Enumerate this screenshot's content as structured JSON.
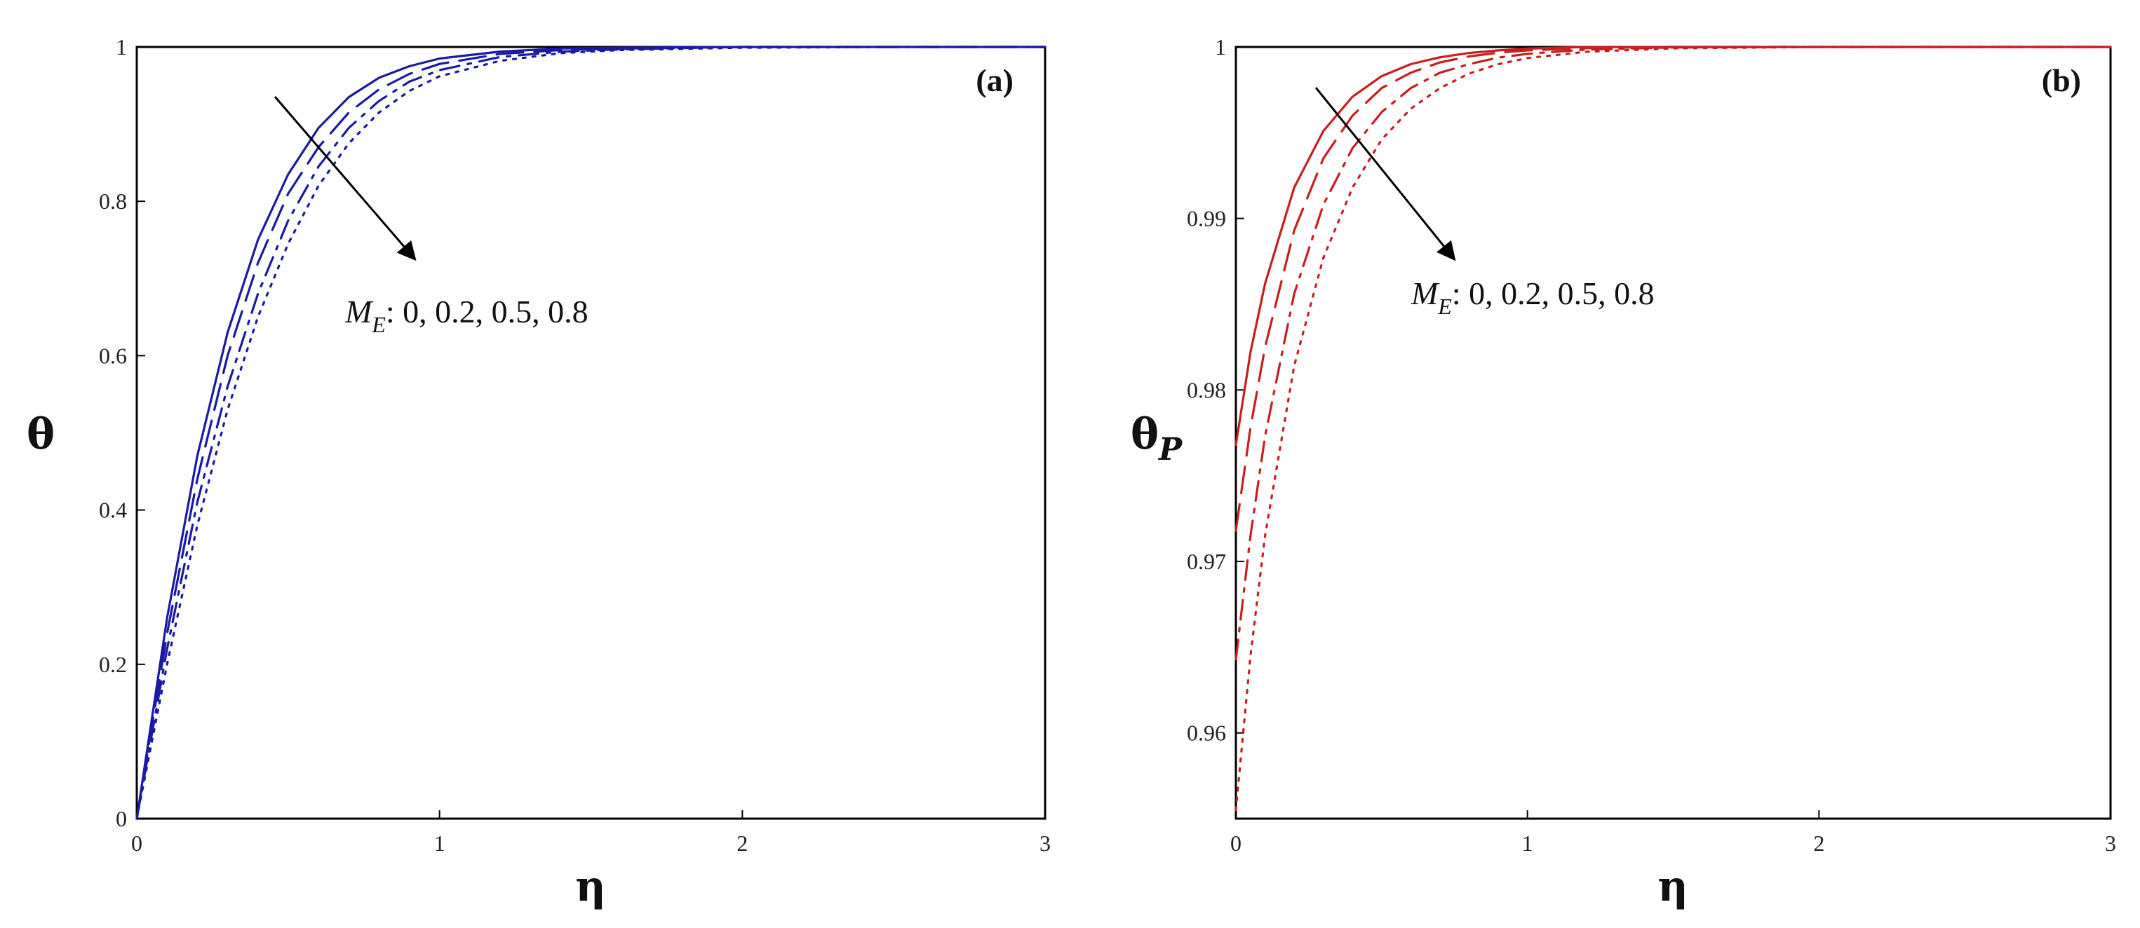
{
  "chart_data": [
    {
      "type": "line",
      "panel_label": "(a)",
      "xlabel": "η",
      "ylabel": "θ",
      "ylabel_sub": "",
      "xlim": [
        0,
        3
      ],
      "ylim": [
        0,
        1
      ],
      "xticks": [
        "0",
        "1",
        "2",
        "3"
      ],
      "yticks": [
        "0",
        "0.2",
        "0.4",
        "0.6",
        "0.8",
        "1"
      ],
      "color": "#1a1aa6",
      "annotation": {
        "variable": "M",
        "subscript": "E",
        "text": ": 0,  0.2, 0.5, 0.8"
      },
      "series": [
        {
          "param": 0,
          "style": "solid",
          "x": [
            0,
            0.1,
            0.2,
            0.3,
            0.4,
            0.5,
            0.6,
            0.7,
            0.8,
            0.9,
            1.0,
            1.2,
            1.4,
            1.6,
            2.0,
            2.5,
            3.0
          ],
          "y": [
            0,
            0.26,
            0.47,
            0.63,
            0.75,
            0.835,
            0.895,
            0.935,
            0.96,
            0.975,
            0.985,
            0.994,
            0.998,
            0.999,
            1,
            1,
            1
          ]
        },
        {
          "param": 0.2,
          "style": "dashed",
          "x": [
            0,
            0.1,
            0.2,
            0.3,
            0.4,
            0.5,
            0.6,
            0.7,
            0.8,
            0.9,
            1.0,
            1.2,
            1.4,
            1.6,
            2.0,
            2.5,
            3.0
          ],
          "y": [
            0,
            0.24,
            0.44,
            0.6,
            0.72,
            0.81,
            0.87,
            0.915,
            0.945,
            0.965,
            0.978,
            0.991,
            0.996,
            0.998,
            1,
            1,
            1
          ]
        },
        {
          "param": 0.5,
          "style": "dashdot",
          "x": [
            0,
            0.1,
            0.2,
            0.3,
            0.4,
            0.5,
            0.6,
            0.7,
            0.8,
            0.9,
            1.0,
            1.2,
            1.4,
            1.6,
            2.0,
            2.5,
            3.0
          ],
          "y": [
            0,
            0.22,
            0.41,
            0.56,
            0.68,
            0.775,
            0.845,
            0.895,
            0.93,
            0.955,
            0.97,
            0.987,
            0.994,
            0.997,
            1,
            1,
            1
          ]
        },
        {
          "param": 0.8,
          "style": "dotted",
          "x": [
            0,
            0.1,
            0.2,
            0.3,
            0.4,
            0.5,
            0.6,
            0.7,
            0.8,
            0.9,
            1.0,
            1.2,
            1.4,
            1.6,
            2.0,
            2.5,
            3.0
          ],
          "y": [
            0,
            0.2,
            0.38,
            0.53,
            0.65,
            0.745,
            0.82,
            0.875,
            0.915,
            0.943,
            0.962,
            0.982,
            0.992,
            0.996,
            0.999,
            1,
            1
          ]
        }
      ]
    },
    {
      "type": "line",
      "panel_label": "(b)",
      "xlabel": "η",
      "ylabel": "θ",
      "ylabel_sub": "P",
      "xlim": [
        0,
        3
      ],
      "ylim": [
        0.955,
        1
      ],
      "xticks": [
        "0",
        "1",
        "2",
        "3"
      ],
      "yticks": [
        "0.96",
        "0.97",
        "0.98",
        "0.99",
        "1"
      ],
      "color": "#c81e1e",
      "annotation": {
        "variable": "M",
        "subscript": "E",
        "text": ": 0,  0.2, 0.5, 0.8"
      },
      "series": [
        {
          "param": 0,
          "style": "solid",
          "x": [
            0,
            0.05,
            0.1,
            0.2,
            0.3,
            0.4,
            0.5,
            0.6,
            0.7,
            0.8,
            0.9,
            1.0,
            1.2,
            1.5,
            2.0,
            2.5,
            3.0
          ],
          "y": [
            0.9768,
            0.9822,
            0.9862,
            0.9918,
            0.9951,
            0.9971,
            0.9983,
            0.999,
            0.9994,
            0.99965,
            0.9998,
            0.9999,
            1,
            1,
            1,
            1,
            1
          ]
        },
        {
          "param": 0.2,
          "style": "dashed",
          "x": [
            0,
            0.05,
            0.1,
            0.2,
            0.3,
            0.4,
            0.5,
            0.6,
            0.7,
            0.8,
            0.9,
            1.0,
            1.2,
            1.5,
            2.0,
            2.5,
            3.0
          ],
          "y": [
            0.9718,
            0.9778,
            0.9825,
            0.9893,
            0.9935,
            0.996,
            0.9976,
            0.9985,
            0.9991,
            0.99945,
            0.99967,
            0.9998,
            0.99993,
            1,
            1,
            1,
            1
          ]
        },
        {
          "param": 0.5,
          "style": "dashdot",
          "x": [
            0,
            0.05,
            0.1,
            0.2,
            0.3,
            0.4,
            0.5,
            0.6,
            0.7,
            0.8,
            0.9,
            1.0,
            1.2,
            1.5,
            2.0,
            2.5,
            3.0
          ],
          "y": [
            0.9643,
            0.9715,
            0.9773,
            0.9856,
            0.9908,
            0.9941,
            0.9962,
            0.9976,
            0.9985,
            0.999,
            0.99938,
            0.9996,
            0.99985,
            0.99997,
            1,
            1,
            1
          ]
        },
        {
          "param": 0.8,
          "style": "dotted",
          "x": [
            0,
            0.05,
            0.1,
            0.2,
            0.3,
            0.4,
            0.5,
            0.6,
            0.7,
            0.8,
            0.9,
            1.0,
            1.2,
            1.5,
            2.0,
            2.5,
            3.0
          ],
          "y": [
            0.9555,
            0.9645,
            0.9715,
            0.9814,
            0.9877,
            0.9918,
            0.9946,
            0.9964,
            0.9976,
            0.99845,
            0.999,
            0.99935,
            0.99972,
            0.99992,
            1,
            1,
            1
          ]
        }
      ]
    }
  ]
}
